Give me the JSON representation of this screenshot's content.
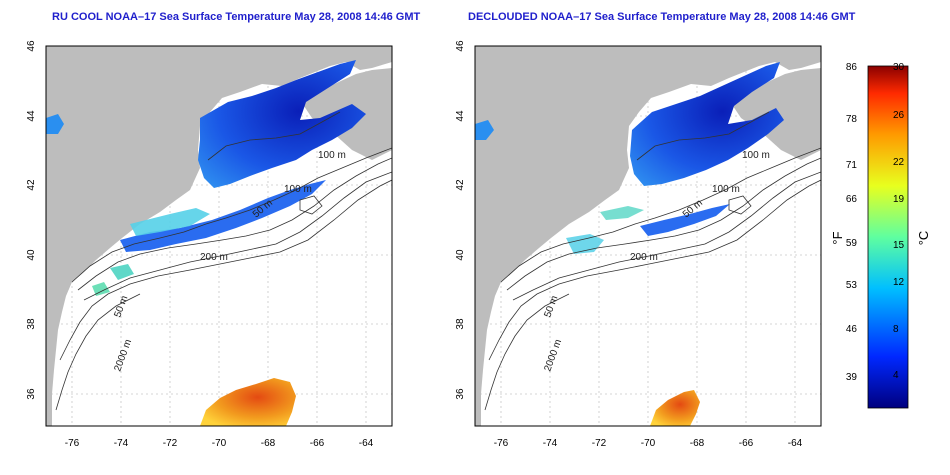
{
  "titles": {
    "left": "RU COOL NOAA–17 Sea Surface Temperature May 28, 2008 14:46 GMT",
    "right": "DECLOUDED NOAA–17 Sea Surface Temperature May 28, 2008 14:46 GMT"
  },
  "axes": {
    "x_ticks": [
      "-76",
      "-74",
      "-72",
      "-70",
      "-68",
      "-66",
      "-64"
    ],
    "y_ticks": [
      "46",
      "44",
      "42",
      "40",
      "38",
      "36"
    ]
  },
  "contours": {
    "left": [
      "100 m",
      "100 m",
      "50 m",
      "200 m",
      "50 m",
      "2000 m"
    ],
    "right": [
      "100 m",
      "100 m",
      "50 m",
      "200 m",
      "50 m",
      "2000 m"
    ]
  },
  "colorbar": {
    "f_unit": "°F",
    "c_unit": "°C",
    "f_ticks": [
      "86",
      "78",
      "71",
      "66",
      "59",
      "53",
      "46",
      "39"
    ],
    "c_ticks": [
      "30",
      "26",
      "22",
      "19",
      "15",
      "12",
      "8",
      "4"
    ]
  },
  "colors": {
    "land": "#bdbdbd",
    "title": "#1f1fcc",
    "cold": "#1a3fd6",
    "warm": "#e8671a"
  }
}
